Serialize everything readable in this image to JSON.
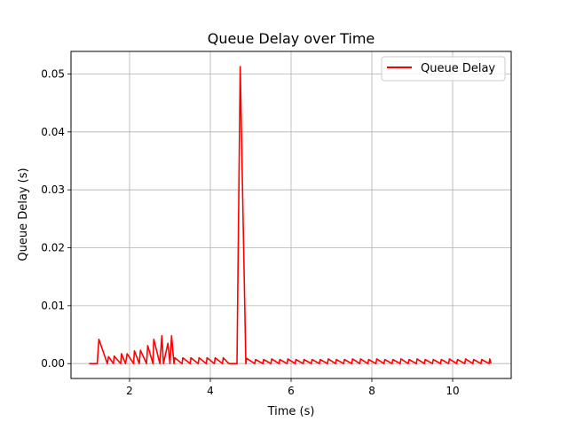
{
  "chart_data": {
    "type": "line",
    "title": "Queue Delay over Time",
    "xlabel": "Time (s)",
    "ylabel": "Queue Delay (s)",
    "xlim": [
      0.55,
      11.45
    ],
    "ylim": [
      -0.00257,
      0.0539
    ],
    "xticks": [
      2,
      4,
      6,
      8,
      10
    ],
    "xtick_labels": [
      "2",
      "4",
      "6",
      "8",
      "10"
    ],
    "yticks": [
      0.0,
      0.01,
      0.02,
      0.03,
      0.04,
      0.05
    ],
    "ytick_labels": [
      "0.00",
      "0.01",
      "0.02",
      "0.03",
      "0.04",
      "0.05"
    ],
    "grid": true,
    "legend_position": "top-right",
    "series": [
      {
        "name": "Queue Delay",
        "color": "#ff0000",
        "x": [
          1.0,
          1.2,
          1.24,
          1.45,
          1.48,
          1.6,
          1.62,
          1.78,
          1.8,
          1.9,
          1.94,
          2.1,
          2.12,
          2.24,
          2.27,
          2.42,
          2.45,
          2.58,
          2.6,
          2.75,
          2.8,
          2.84,
          2.95,
          3.0,
          3.04,
          3.1,
          3.12,
          3.3,
          3.32,
          3.5,
          3.52,
          3.7,
          3.72,
          3.9,
          3.92,
          4.1,
          4.12,
          4.3,
          4.32,
          4.46,
          4.48,
          4.66,
          4.74,
          4.88,
          4.9,
          5.1,
          5.12,
          5.3,
          5.32,
          5.5,
          5.52,
          5.7,
          5.72,
          5.9,
          5.92,
          6.1,
          6.12,
          6.3,
          6.32,
          6.5,
          6.52,
          6.7,
          6.72,
          6.9,
          6.92,
          7.1,
          7.12,
          7.3,
          7.32,
          7.5,
          7.52,
          7.7,
          7.72,
          7.9,
          7.92,
          8.1,
          8.12,
          8.3,
          8.32,
          8.5,
          8.52,
          8.7,
          8.72,
          8.9,
          8.92,
          9.1,
          9.12,
          9.3,
          9.32,
          9.5,
          9.52,
          9.7,
          9.72,
          9.9,
          9.92,
          10.1,
          10.12,
          10.3,
          10.32,
          10.5,
          10.52,
          10.7,
          10.72,
          10.9,
          10.92,
          10.95
        ],
        "y": [
          0.0,
          0.0,
          0.0042,
          0.0,
          0.0012,
          0.0,
          0.0013,
          0.0,
          0.0017,
          0.0,
          0.0017,
          0.0,
          0.0022,
          0.0,
          0.0023,
          0.0,
          0.0031,
          0.0,
          0.0042,
          0.0,
          0.0048,
          0.0,
          0.0035,
          0.0,
          0.0048,
          0.0,
          0.001,
          0.0,
          0.001,
          0.0,
          0.001,
          0.0,
          0.001,
          0.0,
          0.001,
          0.0,
          0.001,
          0.0,
          0.001,
          0.0,
          0.0,
          0.0,
          0.0513,
          0.0,
          0.0009,
          0.0,
          0.0007,
          0.0,
          0.0007,
          0.0,
          0.0008,
          0.0,
          0.0007,
          0.0,
          0.0008,
          0.0,
          0.0007,
          0.0,
          0.0007,
          0.0,
          0.0007,
          0.0,
          0.0007,
          0.0,
          0.0008,
          0.0,
          0.0007,
          0.0,
          0.0007,
          0.0,
          0.0008,
          0.0,
          0.0008,
          0.0,
          0.0007,
          0.0,
          0.0008,
          0.0,
          0.0007,
          0.0,
          0.0007,
          0.0,
          0.0008,
          0.0,
          0.0007,
          0.0,
          0.0008,
          0.0,
          0.0007,
          0.0,
          0.0007,
          0.0,
          0.0007,
          0.0,
          0.0008,
          0.0,
          0.0007,
          0.0,
          0.0008,
          0.0,
          0.0007,
          0.0,
          0.0007,
          0.0,
          0.0008,
          0.0
        ]
      }
    ]
  }
}
